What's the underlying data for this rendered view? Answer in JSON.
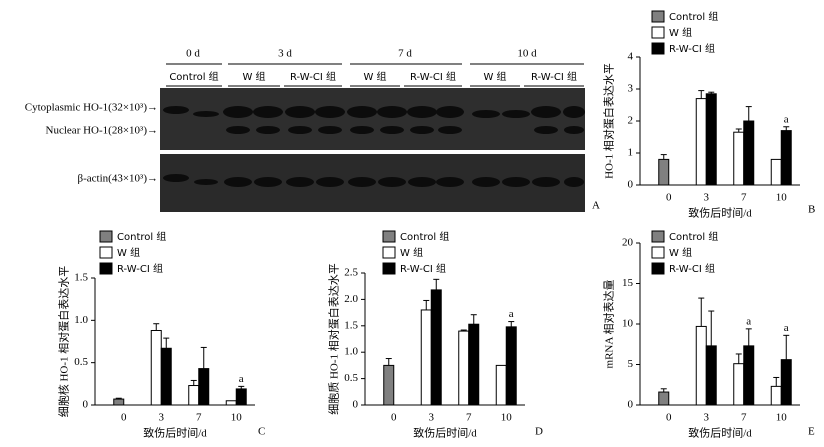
{
  "blot": {
    "days": [
      "0 d",
      "3 d",
      "7 d",
      "10 d"
    ],
    "lanes": [
      "Control 组",
      "W 组",
      "R-W-CI 组",
      "W 组",
      "R-W-CI 组",
      "W 组",
      "R-W-CI 组"
    ],
    "bands": [
      "Cytoplasmic HO-1(32×10³)→",
      "Nuclear HO-1(28×10³)→",
      "β-actin(43×10³)→"
    ],
    "panel": "A"
  },
  "chart_data": [
    {
      "type": "bar",
      "panel": "B",
      "ylabel": "HO-1 相对蛋白表达水平",
      "xlabel": "致伤后时间/d",
      "categories": [
        "0",
        "3",
        "7",
        "10"
      ],
      "ylim": [
        0,
        4
      ],
      "yticks": [
        0,
        1,
        2,
        3,
        4
      ],
      "series": [
        {
          "name": "Control 组",
          "color": "#808080",
          "values": [
            0.8,
            null,
            null,
            null
          ],
          "errors": [
            0.15,
            null,
            null,
            null
          ]
        },
        {
          "name": "W 组",
          "color": "#ffffff",
          "values": [
            null,
            2.7,
            1.65,
            0.8
          ],
          "errors": [
            null,
            0.25,
            0.1,
            null
          ]
        },
        {
          "name": "R-W-CI 组",
          "color": "#000000",
          "values": [
            null,
            2.85,
            2.0,
            1.7
          ],
          "errors": [
            null,
            0.05,
            0.45,
            0.12
          ]
        }
      ],
      "annotations": [
        null,
        null,
        null,
        "a"
      ]
    },
    {
      "type": "bar",
      "panel": "C",
      "ylabel": "细胞核 HO-1 相对蛋白表达水平",
      "xlabel": "致伤后时间/d",
      "categories": [
        "0",
        "3",
        "7",
        "10"
      ],
      "ylim": [
        0,
        1.5
      ],
      "yticks": [
        0,
        0.5,
        {
          "value": 1,
          "label": "1.0"
        },
        1.5
      ],
      "series": [
        {
          "name": "Control 组",
          "color": "#808080",
          "values": [
            0.07,
            null,
            null,
            null
          ],
          "errors": [
            0.01,
            null,
            null,
            null
          ]
        },
        {
          "name": "W 组",
          "color": "#ffffff",
          "values": [
            null,
            0.88,
            0.23,
            0.05
          ],
          "errors": [
            null,
            0.08,
            0.06,
            null
          ]
        },
        {
          "name": "R-W-CI 组",
          "color": "#000000",
          "values": [
            null,
            0.67,
            0.43,
            0.19
          ],
          "errors": [
            null,
            0.12,
            0.25,
            0.03
          ]
        }
      ],
      "annotations": [
        null,
        null,
        null,
        "a"
      ]
    },
    {
      "type": "bar",
      "panel": "D",
      "ylabel": "细胞质 HO-1 相对蛋白表达水平",
      "xlabel": "致伤后时间/d",
      "categories": [
        "0",
        "3",
        "7",
        "10"
      ],
      "ylim": [
        0,
        2.5
      ],
      "yticks": [
        0,
        0.5,
        {
          "value": 1,
          "label": "1.0"
        },
        1.5,
        {
          "value": 2,
          "label": "2.0"
        },
        2.5
      ],
      "series": [
        {
          "name": "Control 组",
          "color": "#808080",
          "values": [
            0.75,
            null,
            null,
            null
          ],
          "errors": [
            0.13,
            null,
            null,
            null
          ]
        },
        {
          "name": "W 组",
          "color": "#ffffff",
          "values": [
            null,
            1.8,
            1.4,
            0.75
          ],
          "errors": [
            null,
            0.18,
            0.02,
            null
          ]
        },
        {
          "name": "R-W-CI 组",
          "color": "#000000",
          "values": [
            null,
            2.18,
            1.53,
            1.48
          ],
          "errors": [
            null,
            0.2,
            0.18,
            0.1
          ]
        }
      ],
      "annotations": [
        null,
        null,
        null,
        "a"
      ]
    },
    {
      "type": "bar",
      "panel": "E",
      "ylabel": "mRNA 相对表达量",
      "xlabel": "致伤后时间/d",
      "categories": [
        "0",
        "3",
        "7",
        "10"
      ],
      "ylim": [
        0,
        20
      ],
      "yticks": [
        0,
        5,
        10,
        15,
        20
      ],
      "series": [
        {
          "name": "Control 组",
          "color": "#808080",
          "values": [
            1.6,
            null,
            null,
            null
          ],
          "errors": [
            0.4,
            null,
            null,
            null
          ]
        },
        {
          "name": "W 组",
          "color": "#ffffff",
          "values": [
            null,
            9.7,
            5.1,
            2.3
          ],
          "errors": [
            null,
            3.5,
            1.2,
            1.1
          ]
        },
        {
          "name": "R-W-CI 组",
          "color": "#000000",
          "values": [
            null,
            7.3,
            7.3,
            5.6
          ],
          "errors": [
            null,
            4.3,
            2.1,
            3.0
          ]
        }
      ],
      "annotations": [
        null,
        null,
        "a",
        "a"
      ]
    }
  ]
}
